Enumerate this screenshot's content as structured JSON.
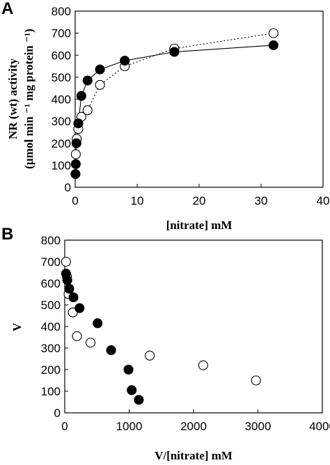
{
  "chart_data": [
    {
      "panel_label": "A",
      "type": "scatter",
      "xlabel": "[nitrate] mM",
      "ylabel_line1": "NR (wt) activity",
      "ylabel_line2": "(µmol min ⁻¹ mg protein ⁻¹)",
      "xlim": [
        0,
        40
      ],
      "ylim": [
        0,
        800
      ],
      "x_ticks": [
        0,
        10,
        20,
        30,
        40
      ],
      "y_ticks": [
        0,
        100,
        200,
        300,
        400,
        500,
        600,
        700,
        800
      ],
      "grid": false,
      "legend": "none",
      "series": [
        {
          "marker": "filled-circle",
          "line": "solid",
          "x": [
            0.05,
            0.1,
            0.2,
            0.5,
            1,
            2,
            4,
            8,
            16,
            32
          ],
          "y": [
            60,
            105,
            200,
            290,
            415,
            485,
            535,
            575,
            615,
            645
          ]
        },
        {
          "marker": "open-circle",
          "line": "dotted",
          "x": [
            0.1,
            0.25,
            0.5,
            1,
            2,
            4,
            8,
            16,
            32
          ],
          "y": [
            150,
            220,
            265,
            320,
            350,
            465,
            550,
            630,
            700
          ]
        }
      ]
    },
    {
      "panel_label": "B",
      "type": "scatter",
      "xlabel": "V/[nitrate] mM",
      "ylabel": "V",
      "xlim": [
        0,
        4000
      ],
      "ylim": [
        0,
        800
      ],
      "x_ticks": [
        0,
        1000,
        2000,
        3000,
        4000
      ],
      "y_ticks": [
        0,
        100,
        200,
        300,
        400,
        500,
        600,
        700,
        800
      ],
      "grid": false,
      "legend": "none",
      "series": [
        {
          "marker": "filled-circle",
          "x": [
            1150,
            1040,
            990,
            720,
            510,
            230,
            135,
            70,
            40,
            20
          ],
          "y": [
            60,
            105,
            200,
            290,
            415,
            485,
            535,
            575,
            615,
            645
          ]
        },
        {
          "marker": "open-circle",
          "x": [
            2970,
            2150,
            1320,
            400,
            190,
            125,
            60,
            35,
            20
          ],
          "y": [
            150,
            220,
            265,
            325,
            355,
            465,
            550,
            630,
            700
          ]
        }
      ]
    }
  ]
}
